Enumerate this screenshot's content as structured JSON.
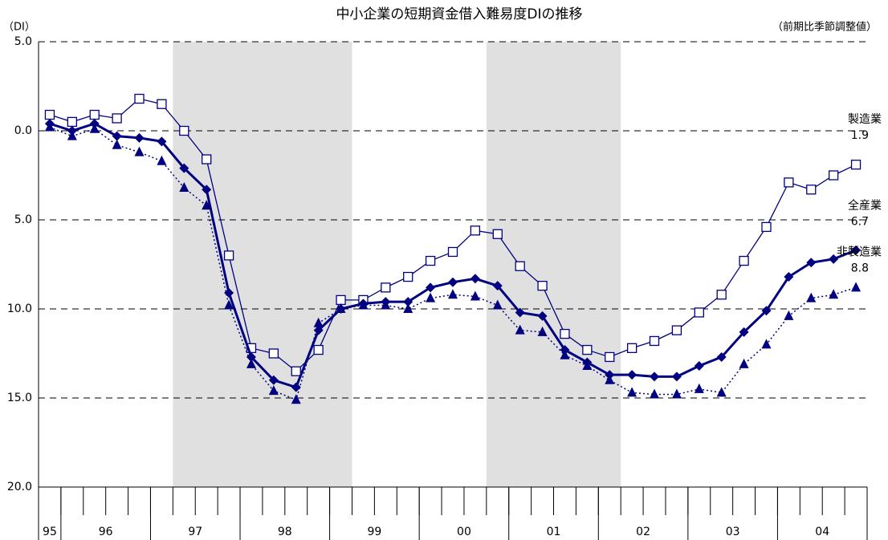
{
  "chart_data": {
    "type": "line",
    "title": "中小企業の短期資金借入難易度DIの推移",
    "y_unit": "（DI）",
    "subtitle": "（前期比季節調整値）",
    "categories": [
      null,
      null,
      null,
      null,
      null,
      null,
      null,
      null,
      null,
      null,
      null,
      null,
      null,
      null,
      null,
      null,
      null,
      null,
      null,
      null,
      null,
      null,
      null,
      null,
      null,
      null,
      null,
      null,
      null,
      null,
      null,
      null,
      null,
      null,
      null,
      null,
      null
    ],
    "x_groups": [
      {
        "label": "95",
        "count": 1
      },
      {
        "label": "96",
        "count": 4
      },
      {
        "label": "97",
        "count": 4
      },
      {
        "label": "98",
        "count": 4
      },
      {
        "label": "99",
        "count": 4
      },
      {
        "label": "00",
        "count": 4
      },
      {
        "label": "01",
        "count": 4
      },
      {
        "label": "02",
        "count": 4
      },
      {
        "label": "03",
        "count": 4
      },
      {
        "label": "04",
        "count": 4
      }
    ],
    "shaded_spans": [
      {
        "from": 6,
        "to": 14
      },
      {
        "from": 20,
        "to": 26
      }
    ],
    "ylim": [
      -5,
      20
    ],
    "y_inverted": true,
    "yticks": [
      {
        "value": -5,
        "label": "5.0"
      },
      {
        "value": 0,
        "label": "0.0"
      },
      {
        "value": 5,
        "label": "5.0"
      },
      {
        "value": 10,
        "label": "10.0"
      },
      {
        "value": 15,
        "label": "15.0"
      },
      {
        "value": 20,
        "label": "20.0"
      }
    ],
    "grid": true,
    "series": [
      {
        "name": "製造業",
        "color": "#000080",
        "marker": "square",
        "line": "thin",
        "end_value_label": "1.9",
        "values": [
          -0.9,
          -0.5,
          -0.9,
          -0.7,
          -1.8,
          -1.5,
          0.0,
          1.6,
          7.0,
          12.2,
          12.5,
          13.5,
          12.3,
          9.5,
          9.5,
          8.8,
          8.2,
          7.3,
          6.8,
          5.6,
          5.8,
          7.6,
          8.7,
          11.4,
          12.3,
          12.7,
          12.2,
          11.8,
          11.2,
          10.2,
          9.2,
          7.3,
          5.4,
          2.9,
          3.3,
          2.5,
          1.9
        ]
      },
      {
        "name": "全産業",
        "color": "#000080",
        "marker": "diamond",
        "line": "thick",
        "end_value_label": "6.7",
        "values": [
          -0.4,
          0.0,
          -0.4,
          0.3,
          0.4,
          0.6,
          2.1,
          3.3,
          9.1,
          12.7,
          14.0,
          14.4,
          11.2,
          10.0,
          9.7,
          9.6,
          9.6,
          8.8,
          8.5,
          8.3,
          8.7,
          10.2,
          10.4,
          12.3,
          13.0,
          13.7,
          13.7,
          13.8,
          13.8,
          13.2,
          12.7,
          11.3,
          10.1,
          8.2,
          7.4,
          7.2,
          6.7
        ]
      },
      {
        "name": "非製造業",
        "color": "#000080",
        "marker": "triangle",
        "line": "dotted",
        "end_value_label": "8.8",
        "values": [
          -0.2,
          0.3,
          -0.1,
          0.8,
          1.2,
          1.7,
          3.2,
          4.2,
          9.8,
          13.1,
          14.6,
          15.1,
          10.8,
          10.0,
          9.8,
          9.8,
          10.0,
          9.4,
          9.2,
          9.3,
          9.8,
          11.2,
          11.3,
          12.6,
          13.2,
          14.0,
          14.7,
          14.8,
          14.8,
          14.5,
          14.7,
          13.1,
          12.0,
          10.4,
          9.4,
          9.2,
          8.8
        ]
      }
    ]
  }
}
